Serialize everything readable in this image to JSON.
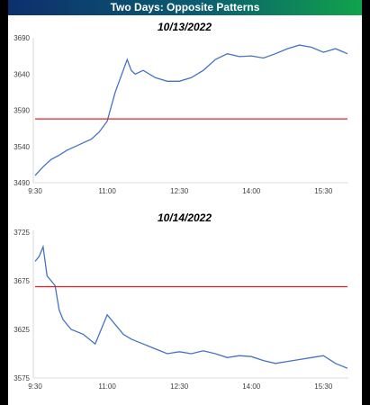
{
  "header": {
    "title": "Two Days: Opposite Patterns"
  },
  "chart_data": [
    {
      "type": "line",
      "title": "10/13/2022",
      "xlabel": "",
      "ylabel": "",
      "x_tick_labels": [
        "9:30",
        "11:00",
        "12:30",
        "14:00",
        "15:30"
      ],
      "y_ticks": [
        3490,
        3540,
        3590,
        3640,
        3690
      ],
      "ylim": [
        3490,
        3690
      ],
      "reference_line": 3578,
      "reference_color": "#e02020",
      "line_color": "#4472c4",
      "grid": false,
      "series": [
        {
          "x": [
            "9:30",
            "9:40",
            "9:50",
            "10:00",
            "10:10",
            "10:20",
            "10:30",
            "10:40",
            "10:50",
            "11:00",
            "11:05",
            "11:10",
            "11:15",
            "11:25",
            "11:30",
            "11:35",
            "11:45",
            "12:00",
            "12:15",
            "12:30",
            "12:45",
            "13:00",
            "13:15",
            "13:30",
            "13:45",
            "14:00",
            "14:15",
            "14:30",
            "14:45",
            "15:00",
            "15:15",
            "15:30",
            "15:45",
            "16:00"
          ],
          "values": [
            3500,
            3512,
            3522,
            3528,
            3535,
            3540,
            3545,
            3550,
            3560,
            3575,
            3595,
            3615,
            3630,
            3660,
            3645,
            3640,
            3645,
            3635,
            3630,
            3630,
            3635,
            3645,
            3660,
            3668,
            3664,
            3665,
            3662,
            3668,
            3675,
            3680,
            3677,
            3670,
            3675,
            3668
          ]
        }
      ]
    },
    {
      "type": "line",
      "title": "10/14/2022",
      "xlabel": "",
      "ylabel": "",
      "x_tick_labels": [
        "9:30",
        "11:00",
        "12:30",
        "14:00",
        "15:30"
      ],
      "y_ticks": [
        3575,
        3625,
        3675,
        3725
      ],
      "ylim": [
        3575,
        3725
      ],
      "reference_line": 3669,
      "reference_color": "#e02020",
      "line_color": "#4472c4",
      "grid": false,
      "series": [
        {
          "x": [
            "9:30",
            "9:35",
            "9:40",
            "9:45",
            "9:50",
            "9:55",
            "10:00",
            "10:05",
            "10:15",
            "10:30",
            "10:45",
            "11:00",
            "11:10",
            "11:20",
            "11:30",
            "11:45",
            "12:00",
            "12:15",
            "12:30",
            "12:45",
            "13:00",
            "13:15",
            "13:30",
            "13:45",
            "14:00",
            "14:15",
            "14:30",
            "14:45",
            "15:00",
            "15:15",
            "15:30",
            "15:45",
            "16:00"
          ],
          "values": [
            3695,
            3700,
            3710,
            3680,
            3675,
            3670,
            3645,
            3635,
            3625,
            3620,
            3610,
            3640,
            3630,
            3620,
            3615,
            3610,
            3605,
            3600,
            3602,
            3600,
            3603,
            3600,
            3596,
            3598,
            3597,
            3593,
            3590,
            3592,
            3594,
            3596,
            3598,
            3590,
            3585
          ]
        }
      ]
    }
  ]
}
